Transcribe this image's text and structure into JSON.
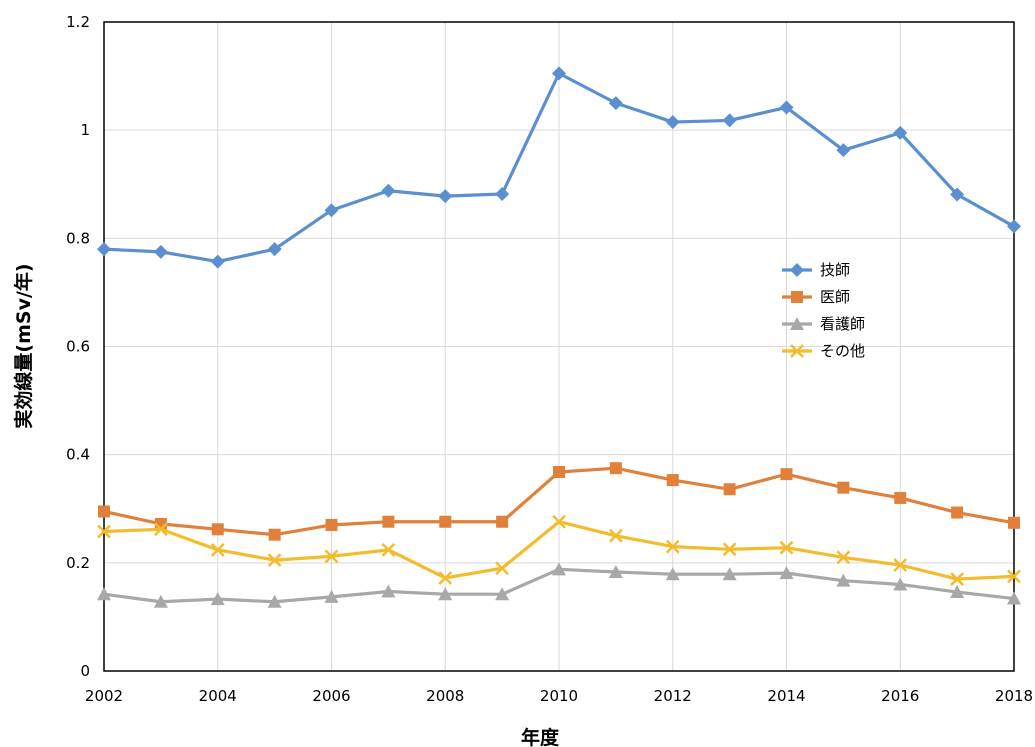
{
  "chart_data": {
    "type": "line",
    "title": "",
    "xlabel": "年度",
    "ylabel": "実効線量(mSv/年)",
    "x": [
      2002,
      2003,
      2004,
      2005,
      2006,
      2007,
      2008,
      2009,
      2010,
      2011,
      2012,
      2013,
      2014,
      2015,
      2016,
      2017,
      2018
    ],
    "x_ticks": [
      "2002",
      "2004",
      "2006",
      "2008",
      "2010",
      "2012",
      "2014",
      "2016",
      "2018"
    ],
    "y_ticks": [
      "0",
      "0.2",
      "0.4",
      "0.6",
      "0.8",
      "1",
      "1.2"
    ],
    "xlim": [
      2002,
      2018
    ],
    "ylim": [
      0,
      1.2
    ],
    "grid": true,
    "legend_position": "right-center",
    "series": [
      {
        "name": "技師",
        "color": "#5b8fd0",
        "marker": "diamond",
        "values": [
          0.78,
          0.775,
          0.757,
          0.78,
          0.852,
          0.888,
          0.878,
          0.882,
          1.105,
          1.05,
          1.015,
          1.018,
          1.042,
          0.963,
          0.995,
          0.881,
          0.822
        ]
      },
      {
        "name": "医師",
        "color": "#e0803a",
        "marker": "square",
        "values": [
          0.295,
          0.272,
          0.262,
          0.252,
          0.27,
          0.276,
          0.276,
          0.276,
          0.368,
          0.375,
          0.353,
          0.336,
          0.364,
          0.339,
          0.32,
          0.293,
          0.274
        ]
      },
      {
        "name": "看護師",
        "color": "#a8a8a8",
        "marker": "triangle",
        "values": [
          0.142,
          0.128,
          0.133,
          0.128,
          0.137,
          0.147,
          0.142,
          0.142,
          0.188,
          0.183,
          0.179,
          0.179,
          0.181,
          0.167,
          0.16,
          0.146,
          0.134
        ]
      },
      {
        "name": "その他",
        "color": "#f2bc2d",
        "marker": "x",
        "values": [
          0.258,
          0.262,
          0.224,
          0.205,
          0.212,
          0.224,
          0.172,
          0.19,
          0.276,
          0.25,
          0.23,
          0.225,
          0.228,
          0.21,
          0.196,
          0.17,
          0.175
        ]
      }
    ]
  }
}
